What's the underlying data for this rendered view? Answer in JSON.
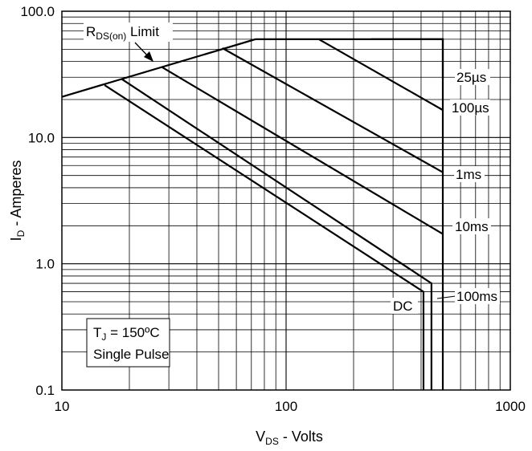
{
  "chart_data": {
    "type": "line",
    "x_scale": "log",
    "y_scale": "log",
    "xlim": [
      10,
      1000
    ],
    "ylim": [
      0.1,
      100
    ],
    "grid": true,
    "x_ticks": [
      "10",
      "100",
      "1000"
    ],
    "y_ticks": [
      "0.1",
      "1.0",
      "10.0",
      "100.0"
    ],
    "xlabel": {
      "main": "V",
      "sub": "DS",
      "rest": " - Volts"
    },
    "ylabel": {
      "main": "I",
      "sub": "D",
      "rest": " - Amperes"
    },
    "series": [
      {
        "name": "25µs",
        "points": [
          [
            240,
            60
          ],
          [
            500,
            60
          ],
          [
            500,
            29
          ]
        ]
      },
      {
        "name": "100µs",
        "points": [
          [
            140,
            60
          ],
          [
            500,
            16.5
          ]
        ]
      },
      {
        "name": "1ms",
        "points": [
          [
            52,
            51
          ],
          [
            500,
            5.3
          ]
        ]
      },
      {
        "name": "10ms",
        "points": [
          [
            28,
            36
          ],
          [
            500,
            1.72
          ]
        ]
      },
      {
        "name": "100ms",
        "points": [
          [
            18.5,
            29
          ],
          [
            445,
            0.7
          ],
          [
            445,
            0.1
          ]
        ]
      },
      {
        "name": "DC",
        "points": [
          [
            15.5,
            26
          ],
          [
            410,
            0.6
          ],
          [
            410,
            0.1
          ]
        ]
      },
      {
        "name": "RDS(on) Limit",
        "points": [
          [
            10,
            21
          ],
          [
            73,
            60
          ],
          [
            500,
            60
          ],
          [
            500,
            0.1
          ]
        ]
      }
    ],
    "annotations": {
      "rds_limit": {
        "prefix": "R",
        "sub": "DS(on)",
        "rest": " Limit"
      },
      "labels": [
        "25µs",
        "100µs",
        "1ms",
        "10ms",
        "100ms",
        "DC"
      ],
      "box_line1": {
        "prefix": "T",
        "sub": "J",
        "rest": " = 150ºC"
      },
      "box_line2": "Single Pulse"
    }
  }
}
